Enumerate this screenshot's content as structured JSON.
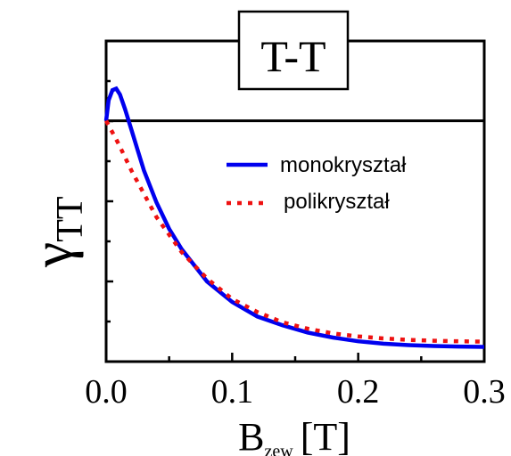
{
  "chart_data": {
    "type": "line",
    "title": "T-T",
    "ylabel_main": "γ",
    "ylabel_sub": "TT",
    "xlabel_main": "B",
    "xlabel_sub": "zew",
    "xlabel_unit": "[T]",
    "xlim": [
      0.0,
      0.3
    ],
    "ylim": [
      0.0,
      1.0
    ],
    "x_ticks": [
      "0.0",
      "0.1",
      "0.2",
      "0.3"
    ],
    "reference_level": 0.8,
    "series": [
      {
        "name": "monokryształ",
        "color": "#0000ee",
        "style": "solid",
        "x": [
          0.0,
          0.002,
          0.005,
          0.008,
          0.011,
          0.015,
          0.02,
          0.025,
          0.03,
          0.04,
          0.05,
          0.06,
          0.08,
          0.1,
          0.12,
          0.14,
          0.16,
          0.18,
          0.2,
          0.22,
          0.24,
          0.26,
          0.28,
          0.3
        ],
        "y": [
          0.8,
          0.87,
          0.905,
          0.91,
          0.89,
          0.84,
          0.77,
          0.7,
          0.63,
          0.52,
          0.43,
          0.36,
          0.25,
          0.18,
          0.13,
          0.1,
          0.075,
          0.058,
          0.045,
          0.037,
          0.032,
          0.029,
          0.027,
          0.026
        ]
      },
      {
        "name": "polikryształ",
        "color": "#ee1111",
        "style": "dotted",
        "x": [
          0.0,
          0.005,
          0.01,
          0.02,
          0.03,
          0.04,
          0.05,
          0.06,
          0.08,
          0.1,
          0.12,
          0.14,
          0.16,
          0.18,
          0.2,
          0.22,
          0.24,
          0.26,
          0.28,
          0.3
        ],
        "y": [
          0.8,
          0.76,
          0.72,
          0.63,
          0.55,
          0.47,
          0.41,
          0.35,
          0.26,
          0.19,
          0.145,
          0.11,
          0.088,
          0.072,
          0.062,
          0.055,
          0.05,
          0.047,
          0.045,
          0.044
        ]
      }
    ],
    "grid": false,
    "legend_position": "right"
  }
}
